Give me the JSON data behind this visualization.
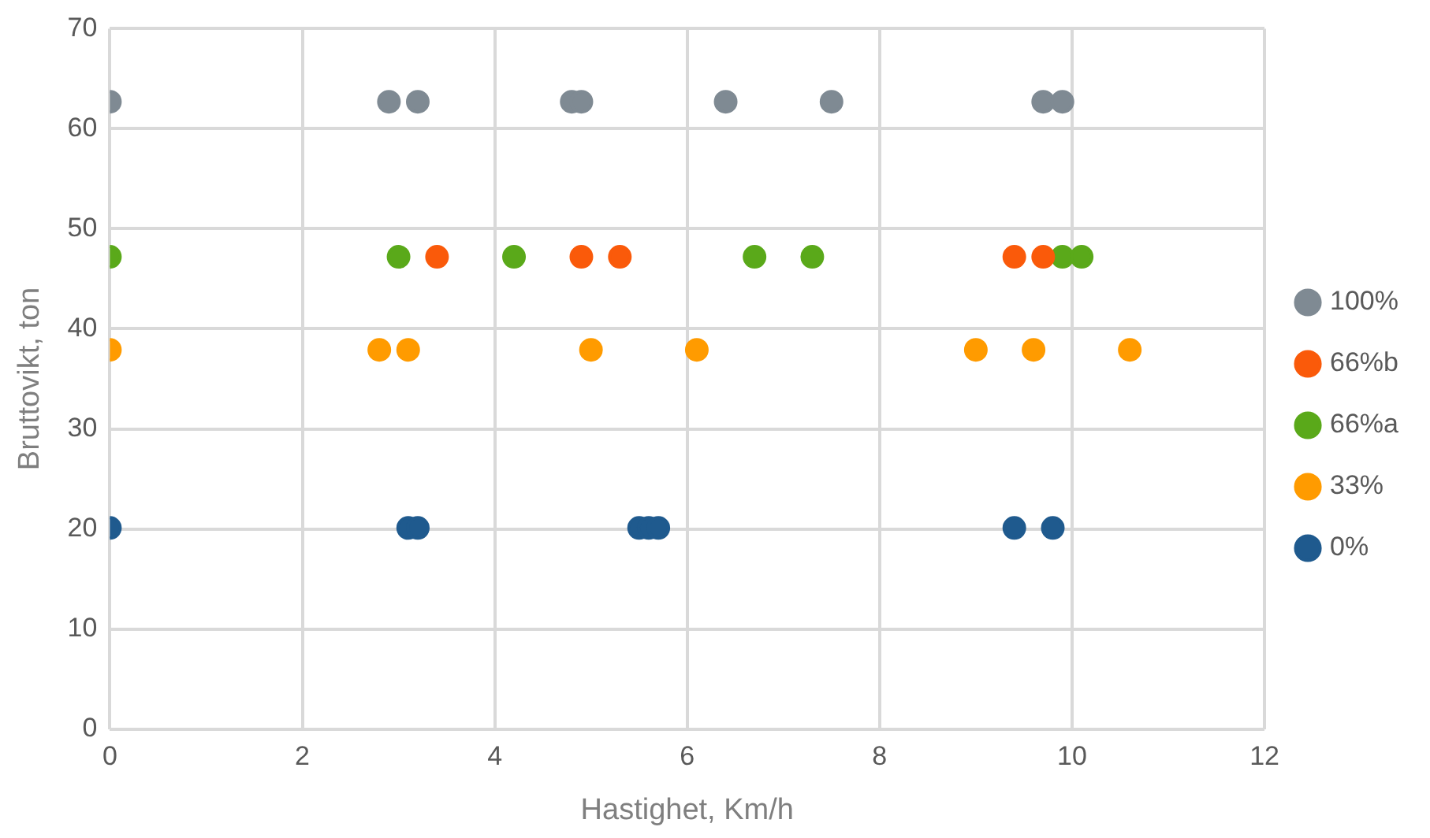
{
  "chart_data": {
    "type": "scatter",
    "xlabel": "Hastighet, Km/h",
    "ylabel": "Bruttovikt, ton",
    "xlim": [
      0,
      12
    ],
    "xticks": [
      0,
      2,
      4,
      6,
      8,
      10,
      12
    ],
    "ylim": [
      0,
      70
    ],
    "yticks": [
      0,
      10,
      20,
      30,
      40,
      50,
      60,
      70
    ],
    "grid": true,
    "legend": "right",
    "marker": "circle",
    "series": [
      {
        "name": "100%",
        "color": "#7f8a93",
        "x": [
          0,
          2.9,
          3.2,
          4.8,
          4.9,
          6.4,
          7.5,
          9.7,
          9.9
        ],
        "values": [
          62.7,
          62.7,
          62.7,
          62.7,
          62.7,
          62.7,
          62.7,
          62.7,
          62.7
        ]
      },
      {
        "name": "66%b",
        "color": "#fa5a0a",
        "x": [
          3.4,
          4.9,
          5.3,
          9.4,
          9.7
        ],
        "values": [
          47.2,
          47.2,
          47.2,
          47.2,
          47.2
        ]
      },
      {
        "name": "66%a",
        "color": "#5aa91a",
        "x": [
          0,
          3.0,
          4.2,
          6.7,
          7.3,
          9.9,
          10.1
        ],
        "values": [
          47.2,
          47.2,
          47.2,
          47.2,
          47.2,
          47.2,
          47.2
        ]
      },
      {
        "name": "33%",
        "color": "#ff9b00",
        "x": [
          0,
          2.8,
          3.1,
          5.0,
          6.1,
          9.0,
          9.6,
          10.6
        ],
        "values": [
          37.9,
          37.9,
          37.9,
          37.9,
          37.9,
          37.9,
          37.9,
          37.9
        ]
      },
      {
        "name": "0%",
        "color": "#1f5a8e",
        "x": [
          0,
          3.1,
          3.2,
          5.5,
          5.6,
          5.7,
          9.4,
          9.8
        ],
        "values": [
          20.1,
          20.1,
          20.1,
          20.1,
          20.1,
          20.1,
          20.1,
          20.1
        ]
      }
    ]
  }
}
